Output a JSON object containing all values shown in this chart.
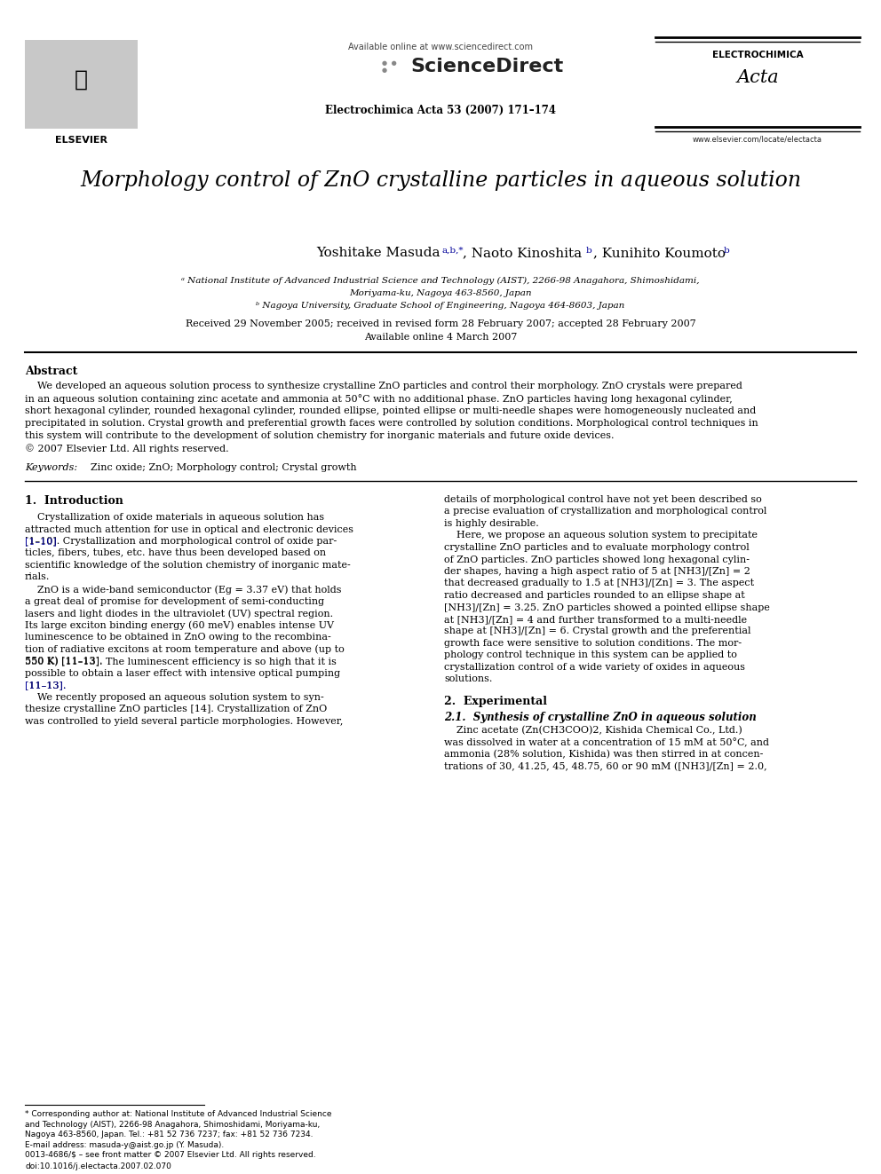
{
  "figsize": [
    9.92,
    13.23
  ],
  "dpi": 100,
  "bg": "#ffffff",
  "blue": "#000099",
  "black": "#000000",
  "header_available": "Available online at www.sciencedirect.com",
  "header_sd": "ScienceDirect",
  "header_journal": "Electrochimica Acta 53 (2007) 171–174",
  "header_electrochimica": "ELECTROCHIMICA",
  "header_acta": "Acta",
  "header_website": "www.elsevier.com/locate/electacta",
  "header_elsevier": "ELSEVIER",
  "title": "Morphology control of ZnO crystalline particles in aqueous solution",
  "author_masuda": "Yoshitake Masuda",
  "author_masuda_sup": "a,b,*",
  "author_kinoshita": ", Naoto Kinoshita",
  "author_kinoshita_sup": "b",
  "author_koumoto": ", Kunihito Koumoto",
  "author_koumoto_sup": "b",
  "affil_a": "ᵃ National Institute of Advanced Industrial Science and Technology (AIST), 2266-98 Anagahora, Shimoshidami,",
  "affil_a2": "Moriyama-ku, Nagoya 463-8560, Japan",
  "affil_b": "ᵇ Nagoya University, Graduate School of Engineering, Nagoya 464-8603, Japan",
  "received": "Received 29 November 2005; received in revised form 28 February 2007; accepted 28 February 2007",
  "available_online": "Available online 4 March 2007",
  "abstract_head": "Abstract",
  "abstract_indent": "    We developed an aqueous solution process to synthesize crystalline ZnO particles and control their morphology. ZnO crystals were prepared",
  "abstract_lines": [
    "in an aqueous solution containing zinc acetate and ammonia at 50°C with no additional phase. ZnO particles having long hexagonal cylinder,",
    "short hexagonal cylinder, rounded hexagonal cylinder, rounded ellipse, pointed ellipse or multi-needle shapes were homogeneously nucleated and",
    "precipitated in solution. Crystal growth and preferential growth faces were controlled by solution conditions. Morphological control techniques in",
    "this system will contribute to the development of solution chemistry for inorganic materials and future oxide devices.",
    "© 2007 Elsevier Ltd. All rights reserved."
  ],
  "kw_label": "Keywords:",
  "kw_text": "  Zinc oxide; ZnO; Morphology control; Crystal growth",
  "s1_title": "1.  Introduction",
  "col1_lines": [
    "    Crystallization of oxide materials in aqueous solution has",
    "attracted much attention for use in optical and electronic devices",
    "[1–10]. Crystallization and morphological control of oxide par-",
    "ticles, fibers, tubes, etc. have thus been developed based on",
    "scientific knowledge of the solution chemistry of inorganic mate-",
    "rials.",
    "    ZnO is a wide-band semiconductor (Eg = 3.37 eV) that holds",
    "a great deal of promise for development of semi-conducting",
    "lasers and light diodes in the ultraviolet (UV) spectral region.",
    "Its large exciton binding energy (60 meV) enables intense UV",
    "luminescence to be obtained in ZnO owing to the recombina-",
    "tion of radiative excitons at room temperature and above (up to",
    "550 K) [11–13]. The luminescent efficiency is so high that it is",
    "possible to obtain a laser effect with intensive optical pumping",
    "[11–13].",
    "    We recently proposed an aqueous solution system to syn-",
    "thesize crystalline ZnO particles [14]. Crystallization of ZnO",
    "was controlled to yield several particle morphologies. However,"
  ],
  "col2_lines": [
    "details of morphological control have not yet been described so",
    "a precise evaluation of crystallization and morphological control",
    "is highly desirable.",
    "    Here, we propose an aqueous solution system to precipitate",
    "crystalline ZnO particles and to evaluate morphology control",
    "of ZnO particles. ZnO particles showed long hexagonal cylin-",
    "der shapes, having a high aspect ratio of 5 at [NH3]/[Zn] = 2",
    "that decreased gradually to 1.5 at [NH3]/[Zn] = 3. The aspect",
    "ratio decreased and particles rounded to an ellipse shape at",
    "[NH3]/[Zn] = 3.25. ZnO particles showed a pointed ellipse shape",
    "at [NH3]/[Zn] = 4 and further transformed to a multi-needle",
    "shape at [NH3]/[Zn] = 6. Crystal growth and the preferential",
    "growth face were sensitive to solution conditions. The mor-",
    "phology control technique in this system can be applied to",
    "crystallization control of a wide variety of oxides in aqueous",
    "solutions."
  ],
  "s2_title": "2.  Experimental",
  "s21_title": "2.1.  Synthesis of crystalline ZnO in aqueous solution",
  "s21_lines": [
    "    Zinc acetate (Zn(CH3COO)2, Kishida Chemical Co., Ltd.)",
    "was dissolved in water at a concentration of 15 mM at 50°C, and",
    "ammonia (28% solution, Kishida) was then stirred in at concen-",
    "trations of 30, 41.25, 45, 48.75, 60 or 90 mM ([NH3]/[Zn] = 2.0,"
  ],
  "fn_lines": [
    "* Corresponding author at: National Institute of Advanced Industrial Science",
    "and Technology (AIST), 2266-98 Anagahora, Shimoshidami, Moriyama-ku,",
    "Nagoya 463-8560, Japan. Tel.: +81 52 736 7237; fax: +81 52 736 7234.",
    "E-mail address: masuda-y@aist.go.jp (Y. Masuda)."
  ],
  "footer1": "0013-4686/$ – see front matter © 2007 Elsevier Ltd. All rights reserved.",
  "footer2": "doi:10.1016/j.electacta.2007.02.070"
}
